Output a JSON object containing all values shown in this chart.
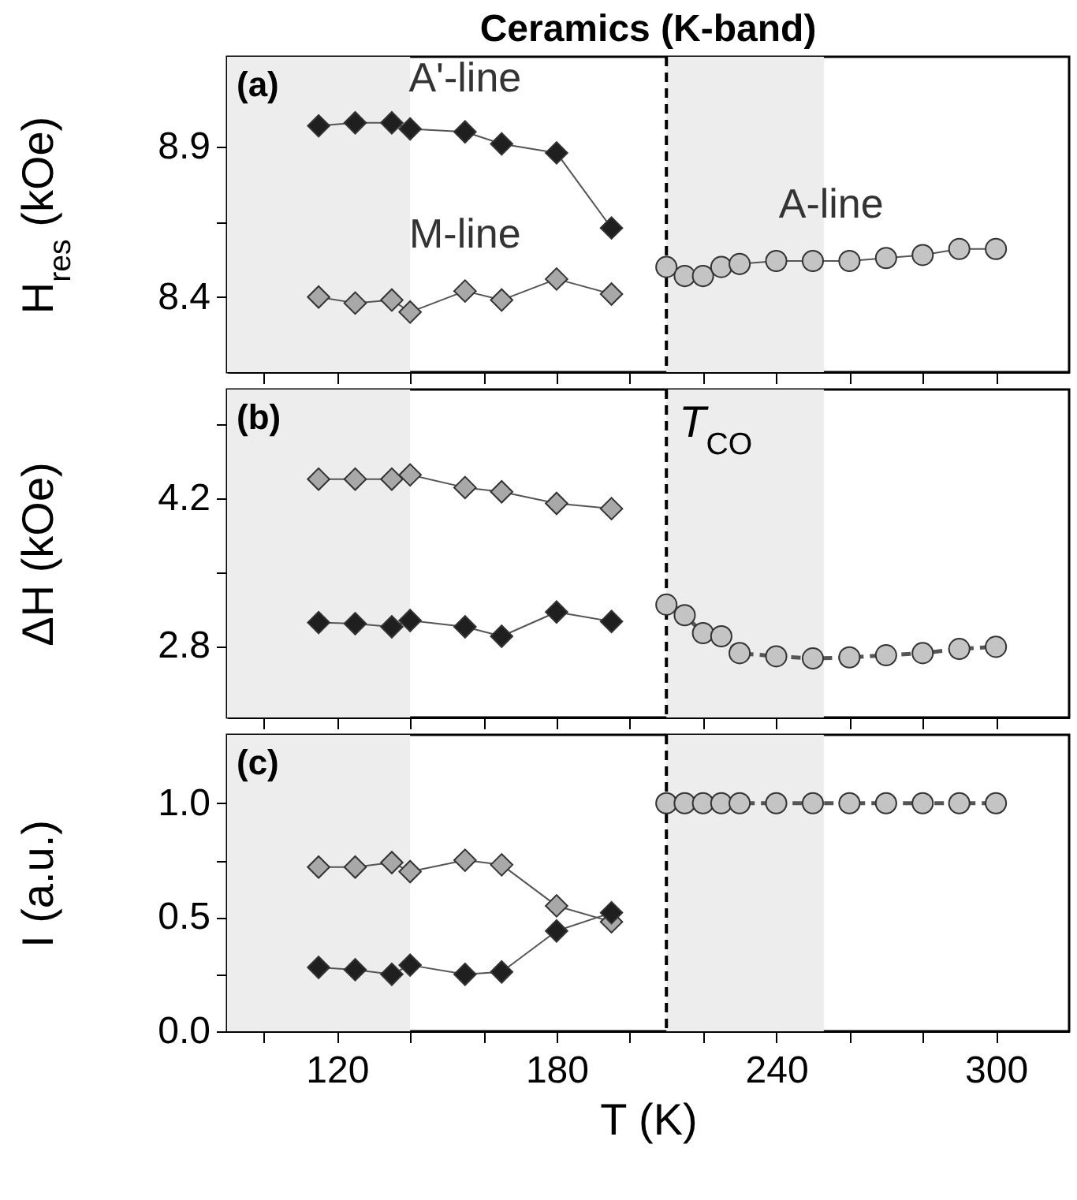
{
  "chart_data": [
    {
      "type": "line",
      "title": "Ceramics (K-band)",
      "ylabel": "H$_{res}$ (kOe)",
      "xlim": [
        90,
        320
      ],
      "xticks": [
        {
          "value": 100,
          "label": null
        },
        120,
        {
          "value": 140,
          "label": null
        },
        {
          "value": 160,
          "label": null
        },
        180,
        {
          "value": 200,
          "label": null
        },
        {
          "value": 220,
          "label": null
        },
        240,
        {
          "value": 260,
          "label": null
        },
        {
          "value": 280,
          "label": null
        },
        300
      ],
      "ylim": [
        8.15,
        9.2
      ],
      "yticks": [
        8.4,
        {
          "value": 8.65,
          "label": null
        },
        8.9
      ],
      "tick_labels": "y",
      "annotations": [
        "(a)"
      ],
      "series": [
        {
          "name": "A'-line",
          "color": "#1f1f1f",
          "marker": "diamond",
          "line_style": "solid",
          "x": [
            115,
            125,
            135,
            140,
            155,
            165,
            180,
            195
          ],
          "values": [
            8.97,
            8.98,
            8.98,
            8.96,
            8.95,
            8.91,
            8.88,
            8.63
          ]
        },
        {
          "name": "M-line",
          "color": "#a8a8a8",
          "marker": "diamond",
          "line_style": "solid",
          "x": [
            115,
            125,
            135,
            140,
            155,
            165,
            180,
            195
          ],
          "values": [
            8.4,
            8.38,
            8.39,
            8.35,
            8.42,
            8.39,
            8.46,
            8.41
          ]
        },
        {
          "name": "A-line",
          "color": "#c4c4c4",
          "marker": "circle",
          "line_style": "solid",
          "x": [
            210,
            215,
            220,
            225,
            230,
            240,
            250,
            260,
            270,
            280,
            290,
            300
          ],
          "values": [
            8.5,
            8.47,
            8.47,
            8.5,
            8.51,
            8.52,
            8.52,
            8.52,
            8.53,
            8.54,
            8.56,
            8.56
          ]
        }
      ],
      "bands": [
        {
          "axis": "x",
          "from": 90,
          "to": 140,
          "color": "#ededed"
        },
        {
          "axis": "x",
          "from": 210,
          "to": 253,
          "color": "#ededed"
        }
      ],
      "ref_lines": [
        {
          "axis": "x",
          "value": 210,
          "line_style": "dashed"
        }
      ]
    },
    {
      "type": "line",
      "ylabel": "ΔH (kOe)",
      "xlim": [
        90,
        320
      ],
      "xticks": [
        {
          "value": 100,
          "label": null
        },
        120,
        {
          "value": 140,
          "label": null
        },
        {
          "value": 160,
          "label": null
        },
        180,
        {
          "value": 200,
          "label": null
        },
        {
          "value": 220,
          "label": null
        },
        240,
        {
          "value": 260,
          "label": null
        },
        {
          "value": 280,
          "label": null
        },
        300
      ],
      "ylim": [
        2.12,
        5.23
      ],
      "yticks": [
        2.8,
        {
          "value": 3.5,
          "label": null
        },
        4.2,
        {
          "value": 4.9,
          "label": null
        }
      ],
      "tick_labels": "y",
      "annotations": [
        "(b)"
      ],
      "series": [
        {
          "color": "#a8a8a8",
          "marker": "diamond",
          "line_style": "solid",
          "x": [
            115,
            125,
            135,
            140,
            155,
            165,
            180,
            195
          ],
          "values": [
            4.38,
            4.38,
            4.38,
            4.42,
            4.3,
            4.26,
            4.15,
            4.1
          ]
        },
        {
          "color": "#1f1f1f",
          "marker": "diamond",
          "line_style": "solid",
          "x": [
            115,
            125,
            135,
            140,
            155,
            165,
            180,
            195
          ],
          "values": [
            3.02,
            3.01,
            2.98,
            3.04,
            2.98,
            2.89,
            3.12,
            3.03
          ]
        },
        {
          "color": "#c4c4c4",
          "marker": "circle",
          "line_style": "dashed",
          "x": [
            210,
            215,
            220,
            225,
            230,
            240,
            250,
            260,
            270,
            280,
            290,
            300
          ],
          "values": [
            3.19,
            3.09,
            2.92,
            2.89,
            2.73,
            2.7,
            2.68,
            2.69,
            2.71,
            2.73,
            2.77,
            2.79
          ]
        }
      ],
      "bands": [
        {
          "axis": "x",
          "from": 90,
          "to": 140,
          "color": "#ededed"
        },
        {
          "axis": "x",
          "from": 210,
          "to": 253,
          "color": "#ededed"
        }
      ],
      "ref_lines": [
        {
          "axis": "x",
          "value": 210,
          "label": "T$_{CO}$",
          "line_style": "dashed"
        }
      ]
    },
    {
      "type": "line",
      "xlabel": "T (K)",
      "ylabel": "I (a.u.)",
      "xlim": [
        90,
        320
      ],
      "xticks": [
        {
          "value": 100,
          "label": null
        },
        120,
        {
          "value": 140,
          "label": null
        },
        {
          "value": 160,
          "label": null
        },
        180,
        {
          "value": 200,
          "label": null
        },
        {
          "value": 220,
          "label": null
        },
        240,
        {
          "value": 260,
          "label": null
        },
        {
          "value": 280,
          "label": null
        },
        300
      ],
      "ylim": [
        0,
        1.3
      ],
      "yticks": [
        {
          "value": 0,
          "label": "0.0"
        },
        {
          "value": 0.25,
          "label": null
        },
        0.5,
        {
          "value": 0.75,
          "label": null
        },
        {
          "value": 1,
          "label": "1.0"
        }
      ],
      "annotations": [
        "(c)"
      ],
      "series": [
        {
          "color": "#a8a8a8",
          "marker": "diamond",
          "line_style": "solid",
          "x": [
            115,
            125,
            135,
            140,
            155,
            165,
            180,
            195
          ],
          "values": [
            0.72,
            0.72,
            0.74,
            0.7,
            0.75,
            0.73,
            0.55,
            0.48
          ]
        },
        {
          "color": "#1f1f1f",
          "marker": "diamond",
          "line_style": "solid",
          "x": [
            115,
            125,
            135,
            140,
            155,
            165,
            180,
            195
          ],
          "values": [
            0.28,
            0.27,
            0.25,
            0.29,
            0.25,
            0.26,
            0.44,
            0.52
          ]
        },
        {
          "color": "#c4c4c4",
          "marker": "circle",
          "line_style": "dashed",
          "x": [
            210,
            215,
            220,
            225,
            230,
            240,
            250,
            260,
            270,
            280,
            290,
            300
          ],
          "values": [
            1.0,
            1.0,
            1.0,
            1.0,
            1.0,
            1.0,
            1.0,
            1.0,
            1.0,
            1.0,
            1.0,
            1.0
          ]
        }
      ],
      "bands": [
        {
          "axis": "x",
          "from": 90,
          "to": 140,
          "color": "#ededed"
        },
        {
          "axis": "x",
          "from": 210,
          "to": 253,
          "color": "#ededed"
        }
      ],
      "ref_lines": [
        {
          "axis": "x",
          "value": 210,
          "line_style": "dashed"
        }
      ]
    }
  ]
}
